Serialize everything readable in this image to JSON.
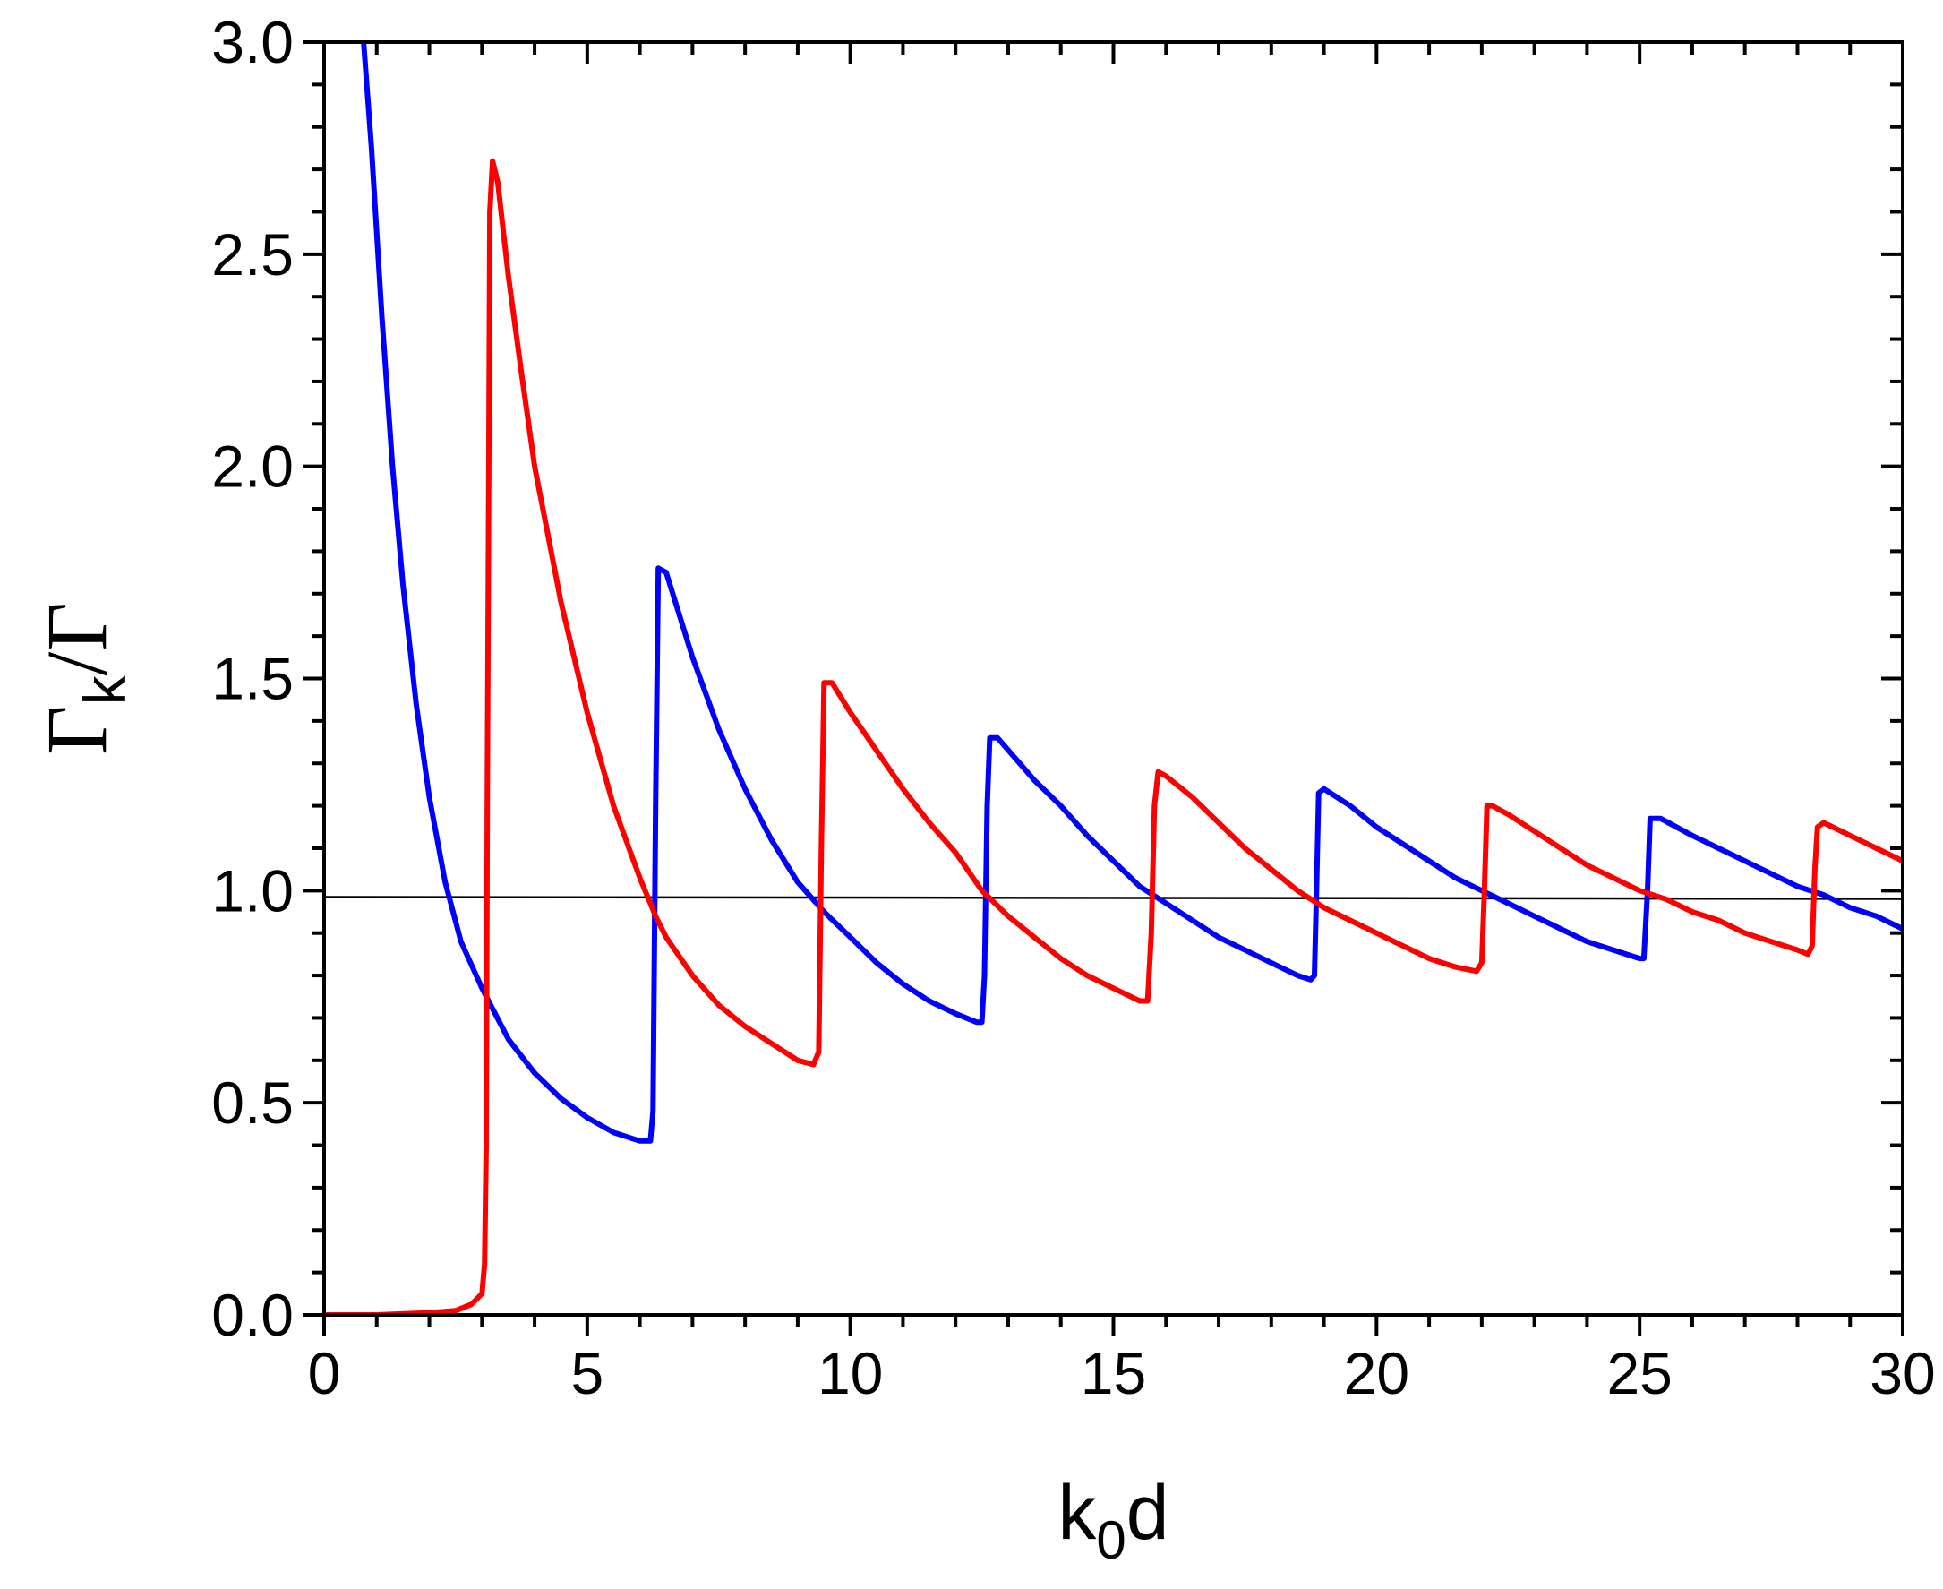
{
  "chart_data": {
    "type": "line",
    "title": "",
    "xlabel": {
      "main": "k",
      "sub": "0",
      "tail": "d"
    },
    "ylabel": {
      "main": "Γ",
      "sub": "k",
      "tail": "/Γ"
    },
    "xlim": [
      0,
      30
    ],
    "ylim": [
      0,
      3.0
    ],
    "xticks": [
      0,
      5,
      10,
      15,
      20,
      25,
      30
    ],
    "xtick_labels": [
      "0",
      "5",
      "10",
      "15",
      "20",
      "25",
      "30"
    ],
    "yticks": [
      0.0,
      0.5,
      1.0,
      1.5,
      2.0,
      2.5,
      3.0
    ],
    "ytick_labels": [
      "0.0",
      "0.5",
      "1.0",
      "1.5",
      "2.0",
      "2.5",
      "3.0"
    ],
    "grid": false,
    "legend": "none",
    "reference_line": {
      "y": 0.985,
      "color": "#000000"
    },
    "series": [
      {
        "color": "#0000ff",
        "points": [
          [
            0.75,
            3.0
          ],
          [
            0.9,
            2.75
          ],
          [
            1.1,
            2.35
          ],
          [
            1.3,
            2.0
          ],
          [
            1.5,
            1.72
          ],
          [
            1.75,
            1.44
          ],
          [
            2.0,
            1.22
          ],
          [
            2.3,
            1.02
          ],
          [
            2.6,
            0.88
          ],
          [
            3.0,
            0.77
          ],
          [
            3.5,
            0.65
          ],
          [
            4.0,
            0.57
          ],
          [
            4.5,
            0.51
          ],
          [
            5.0,
            0.465
          ],
          [
            5.5,
            0.43
          ],
          [
            6.0,
            0.41
          ],
          [
            6.2,
            0.41
          ],
          [
            6.25,
            0.48
          ],
          [
            6.3,
            1.2
          ],
          [
            6.35,
            1.76
          ],
          [
            6.5,
            1.75
          ],
          [
            7.0,
            1.55
          ],
          [
            7.5,
            1.38
          ],
          [
            8.0,
            1.24
          ],
          [
            8.5,
            1.12
          ],
          [
            9.0,
            1.02
          ],
          [
            9.5,
            0.95
          ],
          [
            10.0,
            0.89
          ],
          [
            10.5,
            0.83
          ],
          [
            11.0,
            0.78
          ],
          [
            11.5,
            0.74
          ],
          [
            12.0,
            0.71
          ],
          [
            12.4,
            0.69
          ],
          [
            12.5,
            0.69
          ],
          [
            12.55,
            0.8
          ],
          [
            12.6,
            1.2
          ],
          [
            12.65,
            1.36
          ],
          [
            12.8,
            1.36
          ],
          [
            13.5,
            1.26
          ],
          [
            14.0,
            1.2
          ],
          [
            14.5,
            1.13
          ],
          [
            15.0,
            1.07
          ],
          [
            15.5,
            1.01
          ],
          [
            16.0,
            0.97
          ],
          [
            16.5,
            0.93
          ],
          [
            17.0,
            0.89
          ],
          [
            17.5,
            0.86
          ],
          [
            18.0,
            0.83
          ],
          [
            18.5,
            0.8
          ],
          [
            18.75,
            0.79
          ],
          [
            18.82,
            0.8
          ],
          [
            18.86,
            1.0
          ],
          [
            18.9,
            1.23
          ],
          [
            19.0,
            1.24
          ],
          [
            19.5,
            1.2
          ],
          [
            20.0,
            1.15
          ],
          [
            20.5,
            1.11
          ],
          [
            21.0,
            1.07
          ],
          [
            21.5,
            1.03
          ],
          [
            22.0,
            1.0
          ],
          [
            22.5,
            0.97
          ],
          [
            23.0,
            0.94
          ],
          [
            23.5,
            0.91
          ],
          [
            24.0,
            0.88
          ],
          [
            24.5,
            0.86
          ],
          [
            25.0,
            0.84
          ],
          [
            25.08,
            0.84
          ],
          [
            25.15,
            1.0
          ],
          [
            25.2,
            1.17
          ],
          [
            25.4,
            1.17
          ],
          [
            26.0,
            1.13
          ],
          [
            26.5,
            1.1
          ],
          [
            27.0,
            1.07
          ],
          [
            27.5,
            1.04
          ],
          [
            28.0,
            1.01
          ],
          [
            28.5,
            0.99
          ],
          [
            29.0,
            0.96
          ],
          [
            29.5,
            0.94
          ],
          [
            30.0,
            0.91
          ]
        ]
      },
      {
        "color": "#ff0000",
        "points": [
          [
            0.0,
            0.0
          ],
          [
            1.0,
            0.0
          ],
          [
            2.0,
            0.005
          ],
          [
            2.5,
            0.01
          ],
          [
            2.8,
            0.025
          ],
          [
            3.0,
            0.05
          ],
          [
            3.05,
            0.12
          ],
          [
            3.08,
            0.4
          ],
          [
            3.1,
            1.2
          ],
          [
            3.13,
            2.0
          ],
          [
            3.15,
            2.6
          ],
          [
            3.2,
            2.72
          ],
          [
            3.3,
            2.67
          ],
          [
            3.5,
            2.45
          ],
          [
            3.75,
            2.22
          ],
          [
            4.0,
            2.0
          ],
          [
            4.5,
            1.68
          ],
          [
            5.0,
            1.42
          ],
          [
            5.5,
            1.2
          ],
          [
            6.0,
            1.03
          ],
          [
            6.3,
            0.94
          ],
          [
            6.5,
            0.89
          ],
          [
            7.0,
            0.8
          ],
          [
            7.5,
            0.73
          ],
          [
            8.0,
            0.68
          ],
          [
            8.5,
            0.64
          ],
          [
            9.0,
            0.6
          ],
          [
            9.3,
            0.59
          ],
          [
            9.4,
            0.62
          ],
          [
            9.45,
            1.1
          ],
          [
            9.5,
            1.49
          ],
          [
            9.65,
            1.49
          ],
          [
            10.0,
            1.42
          ],
          [
            10.5,
            1.33
          ],
          [
            11.0,
            1.24
          ],
          [
            11.5,
            1.16
          ],
          [
            12.0,
            1.09
          ],
          [
            12.5,
            1.0
          ],
          [
            13.0,
            0.94
          ],
          [
            13.5,
            0.89
          ],
          [
            14.0,
            0.84
          ],
          [
            14.5,
            0.8
          ],
          [
            15.0,
            0.77
          ],
          [
            15.5,
            0.74
          ],
          [
            15.65,
            0.74
          ],
          [
            15.72,
            0.9
          ],
          [
            15.78,
            1.2
          ],
          [
            15.85,
            1.28
          ],
          [
            16.0,
            1.27
          ],
          [
            16.5,
            1.22
          ],
          [
            17.0,
            1.16
          ],
          [
            17.5,
            1.1
          ],
          [
            18.0,
            1.05
          ],
          [
            18.5,
            1.0
          ],
          [
            19.0,
            0.96
          ],
          [
            19.5,
            0.93
          ],
          [
            20.0,
            0.9
          ],
          [
            20.5,
            0.87
          ],
          [
            21.0,
            0.84
          ],
          [
            21.5,
            0.82
          ],
          [
            21.9,
            0.81
          ],
          [
            22.0,
            0.83
          ],
          [
            22.05,
            1.0
          ],
          [
            22.1,
            1.2
          ],
          [
            22.2,
            1.2
          ],
          [
            22.5,
            1.18
          ],
          [
            23.0,
            1.14
          ],
          [
            23.5,
            1.1
          ],
          [
            24.0,
            1.06
          ],
          [
            24.5,
            1.03
          ],
          [
            25.0,
            1.0
          ],
          [
            25.5,
            0.98
          ],
          [
            26.0,
            0.95
          ],
          [
            26.5,
            0.93
          ],
          [
            27.0,
            0.9
          ],
          [
            27.5,
            0.88
          ],
          [
            28.0,
            0.86
          ],
          [
            28.2,
            0.85
          ],
          [
            28.28,
            0.87
          ],
          [
            28.33,
            1.05
          ],
          [
            28.38,
            1.15
          ],
          [
            28.5,
            1.16
          ],
          [
            29.0,
            1.13
          ],
          [
            29.5,
            1.1
          ],
          [
            30.0,
            1.07
          ]
        ]
      }
    ]
  }
}
